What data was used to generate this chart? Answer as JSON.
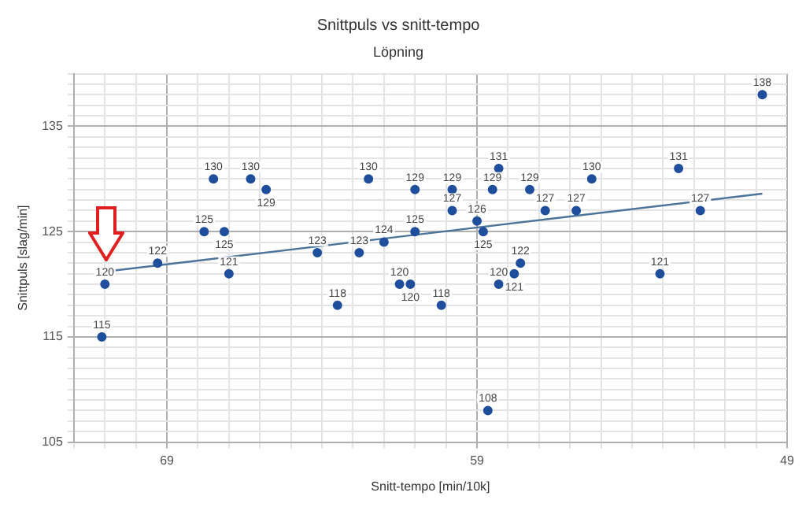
{
  "chart_data": {
    "type": "scatter",
    "title": "Snittpuls vs snitt-tempo",
    "subtitle": "Löpning",
    "xlabel": "Snitt-tempo [min/10k]",
    "ylabel": "Snittpuls [slag/min]",
    "xlim": [
      72,
      49
    ],
    "ylim": [
      105,
      140
    ],
    "xticks": [
      {
        "value": 72,
        "label": null
      },
      {
        "value": 71,
        "label": null
      },
      {
        "value": 70,
        "label": null
      },
      69,
      {
        "value": 68,
        "label": null
      },
      {
        "value": 67,
        "label": null
      },
      {
        "value": 66,
        "label": null
      },
      {
        "value": 65,
        "label": null
      },
      {
        "value": 64,
        "label": null
      },
      {
        "value": 63,
        "label": null
      },
      {
        "value": 62,
        "label": null
      },
      {
        "value": 61,
        "label": null
      },
      {
        "value": 60,
        "label": null
      },
      59,
      {
        "value": 58,
        "label": null
      },
      {
        "value": 57,
        "label": null
      },
      {
        "value": 56,
        "label": null
      },
      {
        "value": 55,
        "label": null
      },
      {
        "value": 54,
        "label": null
      },
      {
        "value": 53,
        "label": null
      },
      {
        "value": 52,
        "label": null
      },
      {
        "value": 51,
        "label": null
      },
      {
        "value": 50,
        "label": null
      },
      49
    ],
    "yticks": [
      105,
      {
        "value": 106,
        "label": null
      },
      {
        "value": 107,
        "label": null
      },
      {
        "value": 108,
        "label": null
      },
      {
        "value": 109,
        "label": null
      },
      {
        "value": 110,
        "label": null
      },
      {
        "value": 111,
        "label": null
      },
      {
        "value": 112,
        "label": null
      },
      {
        "value": 113,
        "label": null
      },
      {
        "value": 114,
        "label": null
      },
      115,
      {
        "value": 116,
        "label": null
      },
      {
        "value": 117,
        "label": null
      },
      {
        "value": 118,
        "label": null
      },
      {
        "value": 119,
        "label": null
      },
      {
        "value": 120,
        "label": null
      },
      {
        "value": 121,
        "label": null
      },
      {
        "value": 122,
        "label": null
      },
      {
        "value": 123,
        "label": null
      },
      {
        "value": 124,
        "label": null
      },
      125,
      {
        "value": 126,
        "label": null
      },
      {
        "value": 127,
        "label": null
      },
      {
        "value": 128,
        "label": null
      },
      {
        "value": 129,
        "label": null
      },
      {
        "value": 130,
        "label": null
      },
      {
        "value": 131,
        "label": null
      },
      {
        "value": 132,
        "label": null
      },
      {
        "value": 133,
        "label": null
      },
      {
        "value": 134,
        "label": null
      },
      135,
      {
        "value": 136,
        "label": null
      },
      {
        "value": 137,
        "label": null
      },
      {
        "value": 138,
        "label": null
      },
      {
        "value": 139,
        "label": null
      },
      {
        "value": 140,
        "label": null
      }
    ],
    "grid": true,
    "legend": false,
    "series": [
      {
        "color": "#1f4e9c",
        "marker": "circle",
        "x": [
          71.1,
          71.0,
          69.3,
          67.8,
          67.5,
          67.15,
          67.0,
          66.3,
          65.8,
          64.15,
          63.5,
          62.8,
          62.5,
          62.0,
          61.5,
          61.15,
          61.0,
          61.0,
          60.15,
          59.8,
          59.8,
          59.0,
          58.8,
          58.65,
          58.5,
          58.3,
          58.3,
          57.8,
          57.6,
          57.3,
          56.8,
          55.8,
          55.3,
          53.1,
          52.5,
          51.8,
          49.8
        ],
        "values": [
          115,
          120,
          122,
          125,
          130,
          125,
          121,
          130,
          129,
          123,
          118,
          123,
          130,
          124,
          120,
          120,
          129,
          125,
          118,
          129,
          127,
          126,
          125,
          108,
          129,
          131,
          120,
          121,
          122,
          129,
          127,
          127,
          130,
          121,
          131,
          127,
          138
        ],
        "value_labels": [
          "115",
          "120",
          "122",
          "125",
          "130",
          "125",
          "121",
          "130",
          "129",
          "123",
          "118",
          "123",
          "130",
          "124",
          "120",
          "120",
          "129",
          "125",
          "118",
          "129",
          "127",
          "126",
          "125",
          "108",
          "129",
          "131",
          "120",
          "121",
          "122",
          "129",
          "127",
          "127",
          "130",
          "121",
          "131",
          "127",
          "138"
        ]
      },
      {
        "type": "line",
        "color": "#4a7499",
        "x": [
          71.0,
          49.8
        ],
        "values": [
          121.2,
          128.6
        ]
      }
    ]
  }
}
